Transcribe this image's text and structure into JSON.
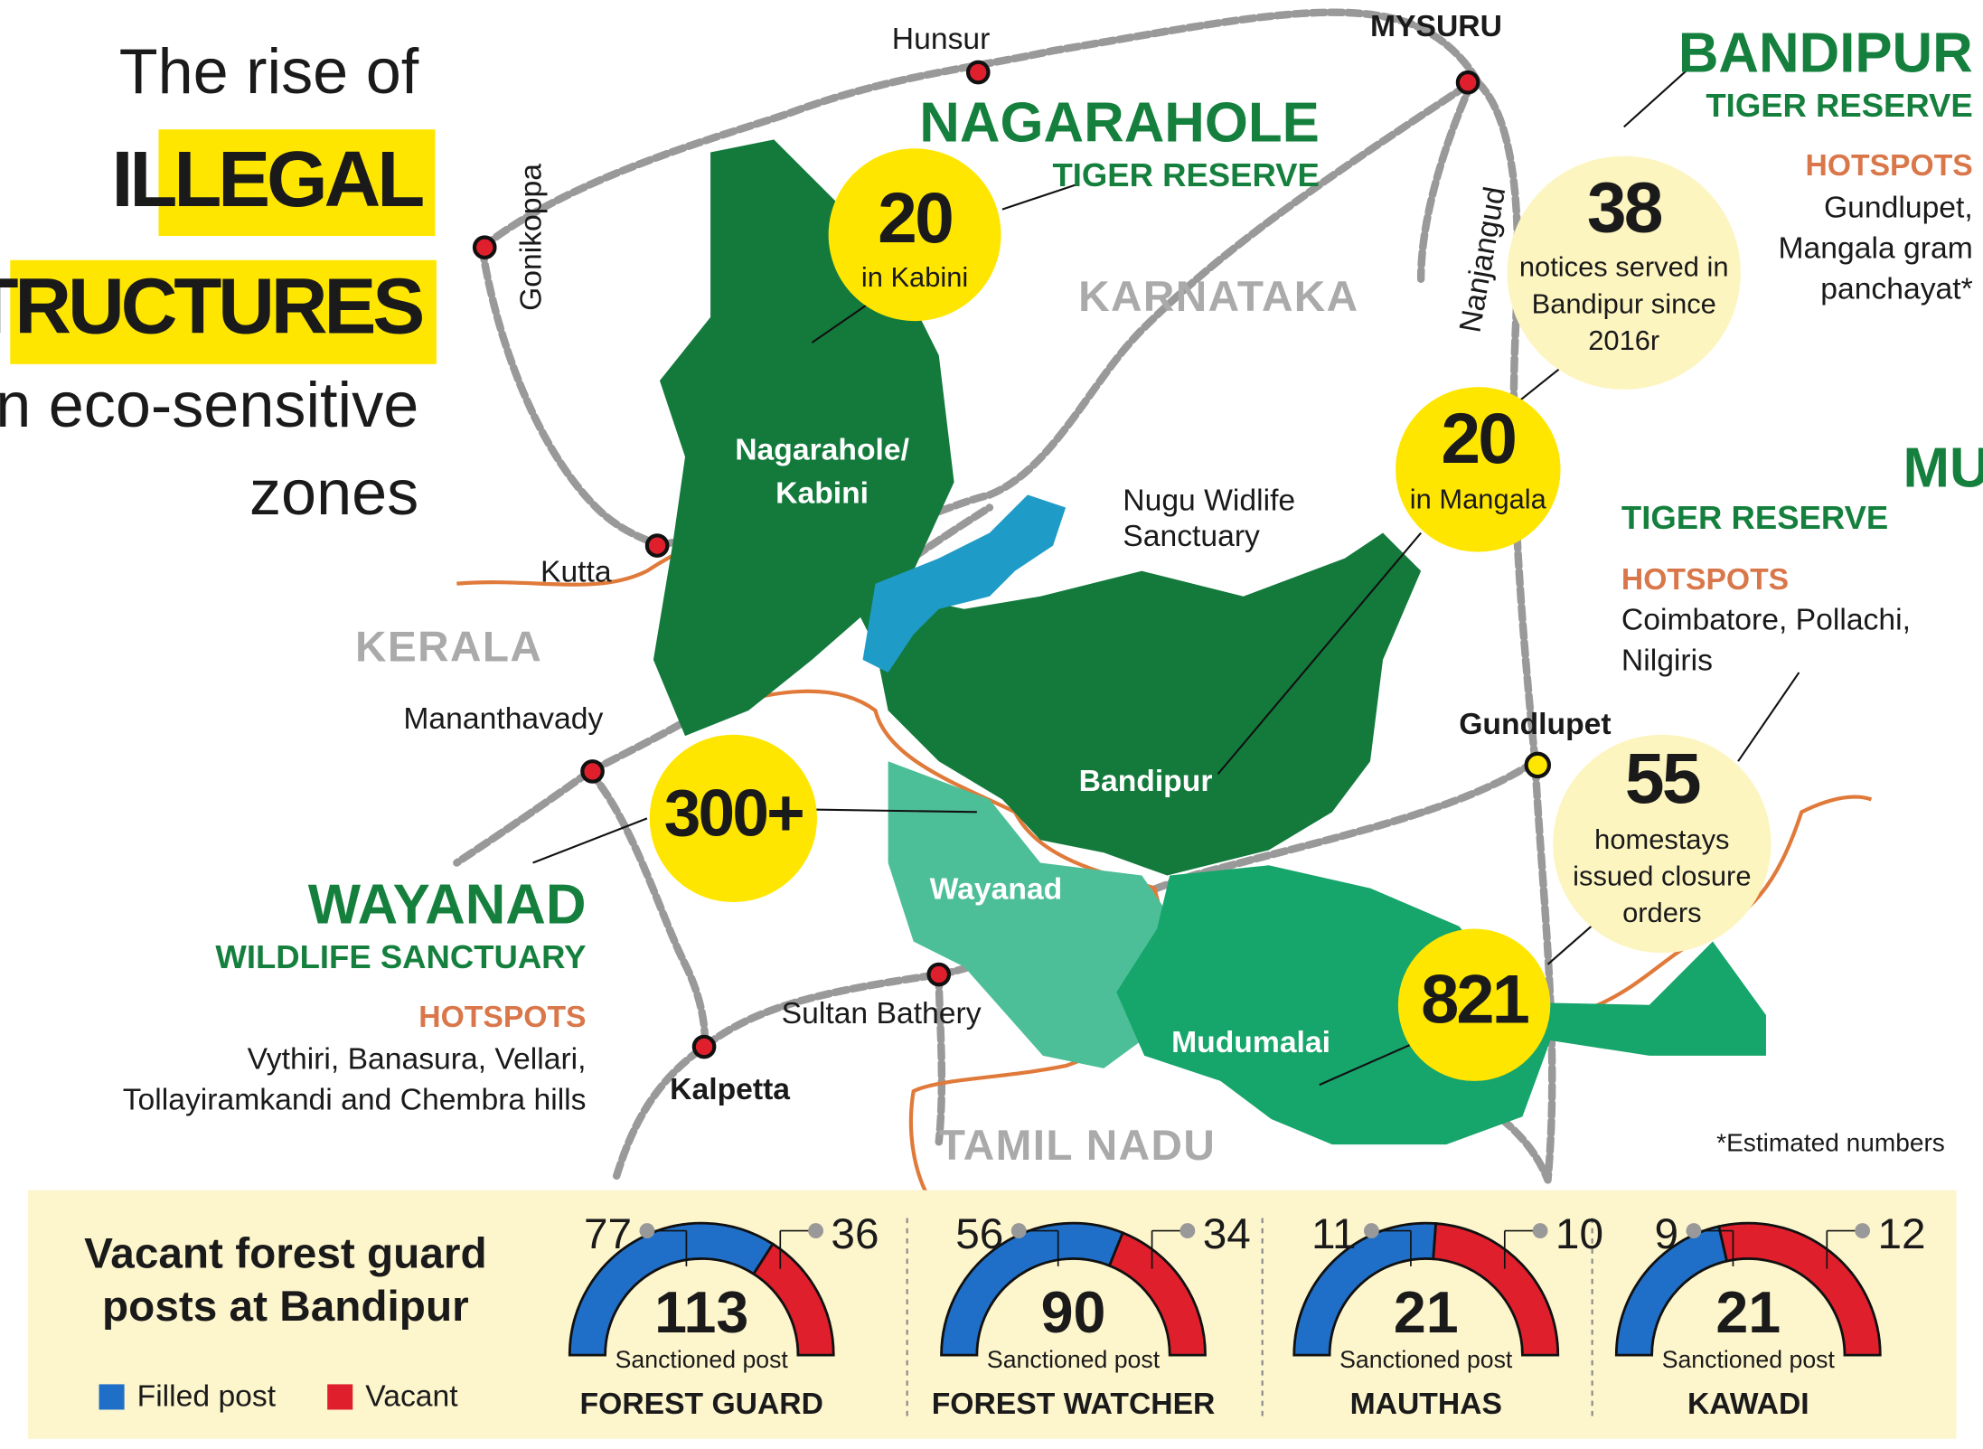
{
  "title": {
    "line1": "The rise of",
    "highlight1": "ILLEGAL",
    "highlight2": "STRUCTURES",
    "line3": "in eco-sensitive",
    "line4": "zones"
  },
  "reserves": {
    "nagarahole": {
      "name": "NAGARAHOLE",
      "subtitle": "TIGER RESERVE"
    },
    "bandipur": {
      "name": "BANDIPUR",
      "subtitle": "TIGER RESERVE",
      "hotspots_label": "HOTSPOTS",
      "hotspots": [
        "Gundlupet,",
        "Mangala gram",
        "panchayat*"
      ]
    },
    "mudumalai": {
      "name": "MUDUMALAI",
      "subtitle": "TIGER RESERVE",
      "hotspots_label": "HOTSPOTS",
      "hotspots": [
        "Coimbatore, Pollachi,",
        "Nilgiris"
      ]
    },
    "wayanad": {
      "name": "WAYANAD",
      "subtitle": "WILDLIFE SANCTUARY",
      "hotspots_label": "HOTSPOTS",
      "hotspots": [
        "Vythiri, Banasura, Vellari,",
        "Tollayiramkandi and Chembra hills"
      ]
    }
  },
  "callouts": {
    "kabini": {
      "value": 20,
      "text": [
        "in Kabini"
      ]
    },
    "notices": {
      "value": 38,
      "text": [
        "notices served in",
        "Bandipur since",
        "2016r"
      ]
    },
    "mangala": {
      "value": 20,
      "text": [
        "in Mangala"
      ]
    },
    "wayanad": {
      "value": "300+"
    },
    "homestays": {
      "value": 55,
      "text": [
        "homestays",
        "issued closure",
        "orders"
      ]
    },
    "mudumalai": {
      "value": 821
    }
  },
  "regions": [
    "KARNATAKA",
    "KERALA",
    "TAMIL NADU"
  ],
  "areas": [
    "Nagarahole/",
    "Kabini",
    "Bandipur",
    "Wayanad",
    "Mudumalai",
    "Nugu Widlife",
    "Sanctuary"
  ],
  "places": [
    "Hunsur",
    "MYSURU",
    "Gonikoppa",
    "Nanjangud",
    "Kutta",
    "Mananthavady",
    "Gundlupet",
    "Sultan Bathery",
    "Kalpetta"
  ],
  "footnote": "*Estimated numbers",
  "vacancy": {
    "title": [
      "Vacant forest guard",
      "posts at Bandipur"
    ],
    "legend": [
      {
        "name": "Filled post",
        "color": "#1f6fc8"
      },
      {
        "name": "Vacant",
        "color": "#e01f2d"
      }
    ],
    "sublabel": "Sanctioned post",
    "gauges": [
      {
        "name": "FOREST GUARD",
        "filled": 77,
        "vacant": 36,
        "total": 113
      },
      {
        "name": "FOREST WATCHER",
        "filled": 56,
        "vacant": 34,
        "total": 90
      },
      {
        "name": "MAUTHAS",
        "filled": 11,
        "vacant": 10,
        "total": 21
      },
      {
        "name": "KAWADI",
        "filled": 9,
        "vacant": 12,
        "total": 21
      }
    ]
  }
}
